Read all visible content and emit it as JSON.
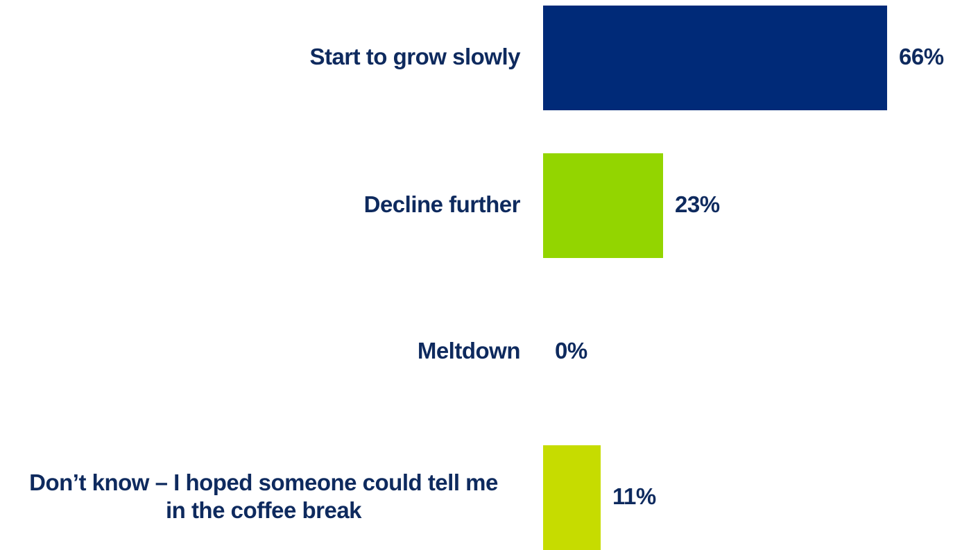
{
  "chart_data": {
    "type": "bar",
    "orientation": "horizontal",
    "categories": [
      "Start to grow slowly",
      "Decline further",
      "Meltdown",
      "Don’t know – I hoped someone could tell me in the coffee break"
    ],
    "category_lines": [
      [
        "Start to grow slowly"
      ],
      [
        "Decline further"
      ],
      [
        "Meltdown"
      ],
      [
        "Don’t know – I hoped someone could tell me",
        "in the coffee break"
      ]
    ],
    "values": [
      66,
      23,
      0,
      11
    ],
    "value_labels": [
      "66%",
      "23%",
      "0%",
      "11%"
    ],
    "bar_colors": [
      "#002a78",
      "#93d500",
      "#93d500",
      "#c6dc00"
    ],
    "xlim": [
      0,
      66
    ],
    "grid": false,
    "legend": "none",
    "title": "",
    "xlabel": "",
    "ylabel": ""
  }
}
